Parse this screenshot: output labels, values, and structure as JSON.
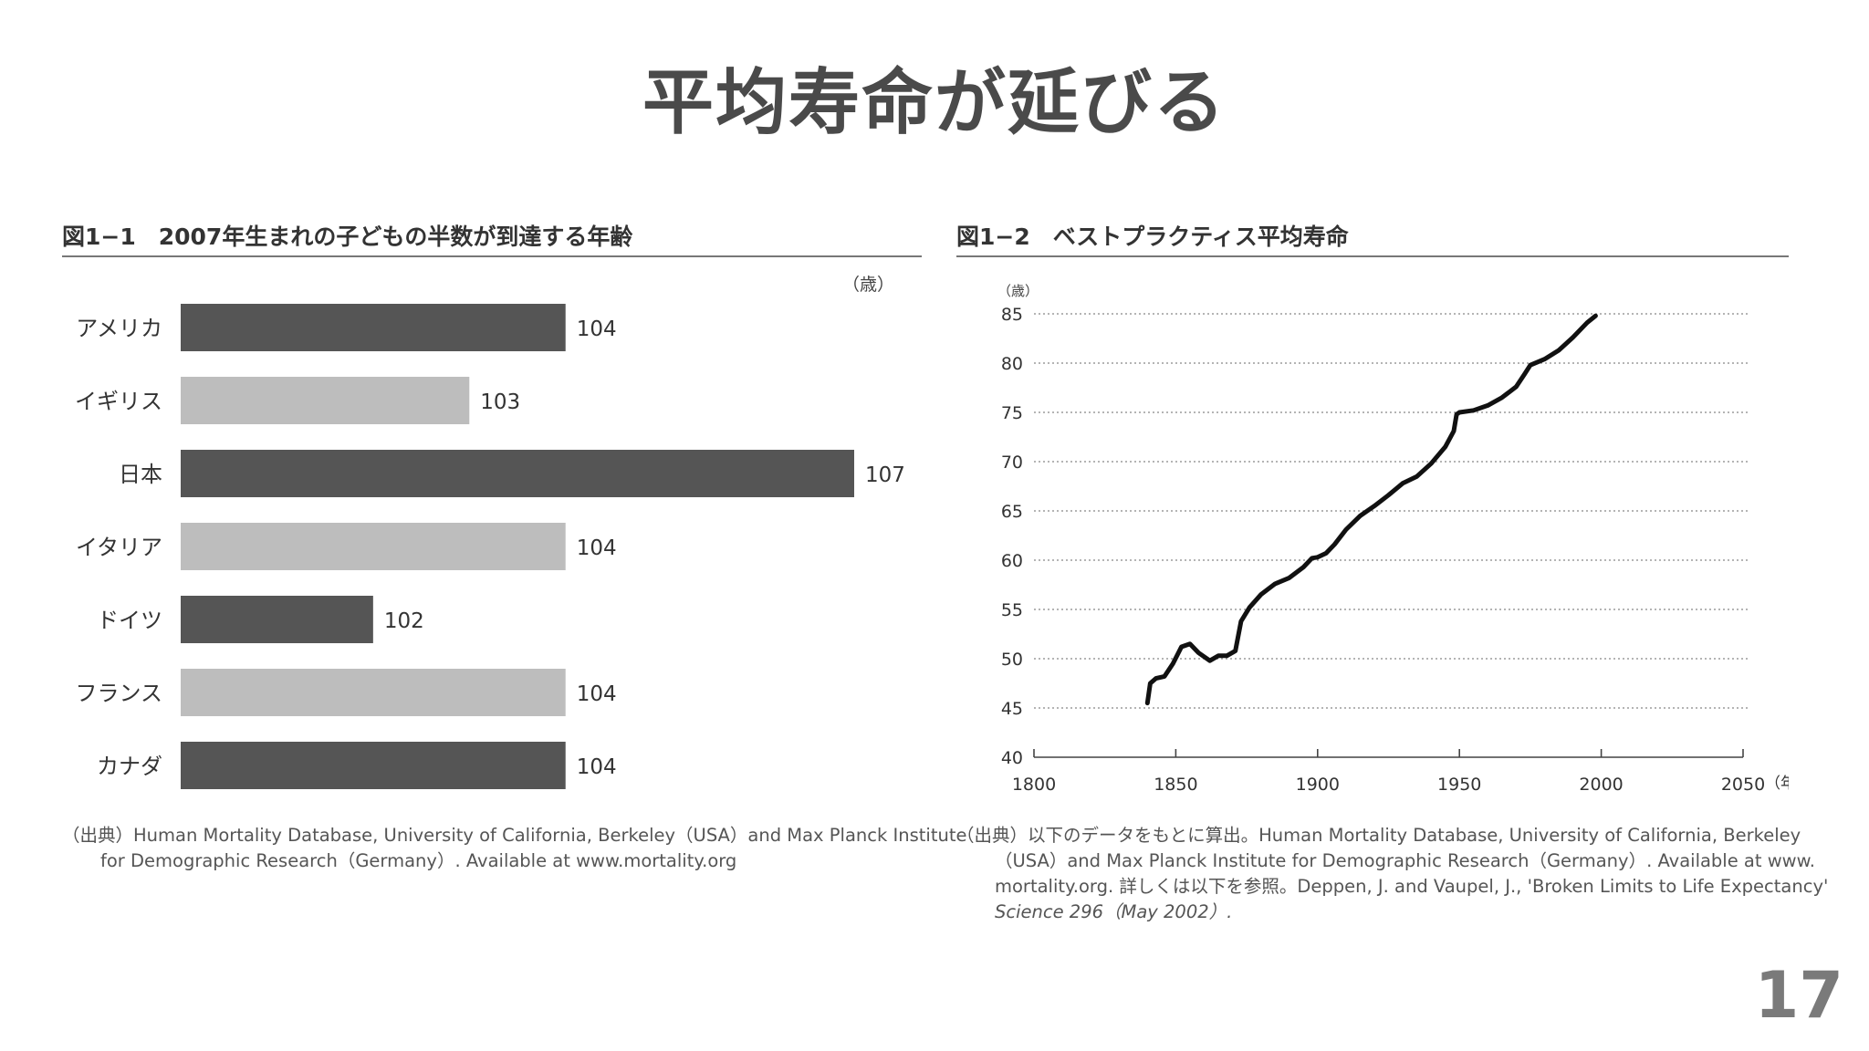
{
  "slide": {
    "title": "平均寿命が延びる",
    "page_number": "17"
  },
  "figure1": {
    "title": "図1−1　2007年生まれの子どもの半数が到達する年齢",
    "source_lines": [
      "（出典）Human Mortality Database, University of California, Berkeley（USA）and Max Planck Institute",
      "for Demographic Research（Germany）. Available at www.mortality.org"
    ]
  },
  "figure2": {
    "title": "図1−2　ベストプラクティス平均寿命",
    "source_lines": [
      "（出典）以下のデータをもとに算出。Human Mortality Database, University of California, Berkeley",
      "（USA）and Max Planck Institute for Demographic Research（Germany）. Available at www.",
      "mortality.org. 詳しくは以下を参照。Deppen, J. and Vaupel, J., 'Broken Limits to Life Expectancy'",
      "Science 296（May 2002）."
    ]
  },
  "chart_data": [
    {
      "type": "bar",
      "orientation": "horizontal",
      "title": "図1−1　2007年生まれの子どもの半数が到達する年齢",
      "unit_label": "（歳）",
      "categories": [
        "アメリカ",
        "イギリス",
        "日本",
        "イタリア",
        "ドイツ",
        "フランス",
        "カナダ"
      ],
      "values": [
        104,
        103,
        107,
        104,
        102,
        104,
        104
      ],
      "value_labels": [
        "104",
        "103",
        "107",
        "104",
        "102",
        "104",
        "104"
      ],
      "bar_colors": [
        "#555555",
        "#bdbdbd",
        "#555555",
        "#bdbdbd",
        "#555555",
        "#bdbdbd",
        "#555555"
      ],
      "xlim": [
        100,
        107
      ],
      "grid": false,
      "legend": "none"
    },
    {
      "type": "line",
      "title": "図1−2　ベストプラクティス平均寿命",
      "ylabel": "（歳）",
      "xlabel": "（年）",
      "xlim": [
        1800,
        2050
      ],
      "ylim": [
        40,
        85
      ],
      "xticks": [
        1800,
        1850,
        1900,
        1950,
        2000,
        2050
      ],
      "yticks": [
        40,
        45,
        50,
        55,
        60,
        65,
        70,
        75,
        80,
        85
      ],
      "x_tick_labels": [
        "1800",
        "1850",
        "1900",
        "1950",
        "2000",
        "2050"
      ],
      "y_tick_labels": [
        "40",
        "45",
        "50",
        "55",
        "60",
        "65",
        "70",
        "75",
        "80",
        "85"
      ],
      "grid": true,
      "legend": "none",
      "line_color": "#111111",
      "series": [
        {
          "x": [
            1840,
            1841,
            1843,
            1846,
            1849,
            1852,
            1855,
            1858,
            1862,
            1865,
            1868,
            1871,
            1873,
            1876,
            1880,
            1885,
            1890,
            1895,
            1898,
            1900,
            1903,
            1906,
            1910,
            1915,
            1920,
            1925,
            1930,
            1935,
            1940,
            1945,
            1948,
            1949,
            1950,
            1955,
            1960,
            1965,
            1970,
            1973,
            1975,
            1980,
            1985,
            1990,
            1995,
            1998
          ],
          "y": [
            45.5,
            47.5,
            48.0,
            48.2,
            49.5,
            51.2,
            51.5,
            50.6,
            49.8,
            50.3,
            50.3,
            50.8,
            53.8,
            55.2,
            56.5,
            57.6,
            58.2,
            59.3,
            60.2,
            60.3,
            60.7,
            61.6,
            63.1,
            64.5,
            65.5,
            66.6,
            67.8,
            68.5,
            69.8,
            71.5,
            73.1,
            74.8,
            75.0,
            75.2,
            75.7,
            76.5,
            77.6,
            78.9,
            79.8,
            80.4,
            81.3,
            82.6,
            84.1,
            84.8
          ]
        }
      ]
    }
  ]
}
